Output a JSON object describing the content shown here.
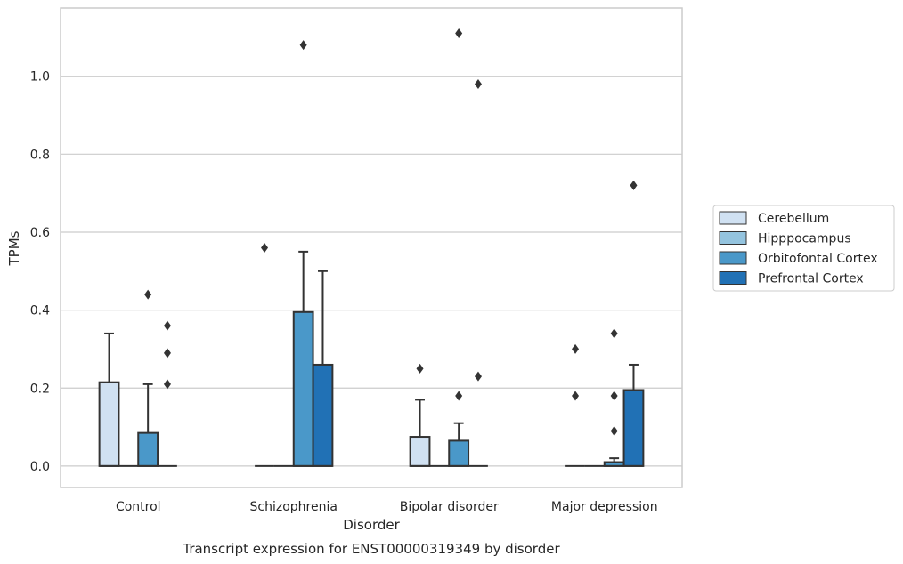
{
  "chart_data": {
    "type": "box",
    "caption": "Transcript expression for ENST00000319349 by disorder",
    "xlabel": "Disorder",
    "ylabel": "TPMs",
    "ylim": [
      -0.055,
      1.175
    ],
    "yticks": [
      0.0,
      0.2,
      0.4,
      0.6,
      0.8,
      1.0
    ],
    "ytick_labels": [
      "0.0",
      "0.2",
      "0.4",
      "0.6",
      "0.8",
      "1.0"
    ],
    "grid": "horizontal",
    "legend_position": "right",
    "categories": [
      "Control",
      "Schizophrenia",
      "Bipolar disorder",
      "Major depression"
    ],
    "series": [
      {
        "name": "Cerebellum",
        "color": "#d0e1f2",
        "boxes": [
          {
            "q1": 0,
            "median": 0,
            "q3": 0.215,
            "whisker_low": 0,
            "whisker_high": 0.34,
            "outliers": []
          },
          {
            "q1": 0,
            "median": 0,
            "q3": 0,
            "whisker_low": 0,
            "whisker_high": 0,
            "outliers": [
              0.56
            ]
          },
          {
            "q1": 0,
            "median": 0,
            "q3": 0.075,
            "whisker_low": 0,
            "whisker_high": 0.17,
            "outliers": [
              0.25
            ]
          },
          {
            "q1": 0,
            "median": 0,
            "q3": 0,
            "whisker_low": 0,
            "whisker_high": 0,
            "outliers": [
              0.18,
              0.3
            ]
          }
        ]
      },
      {
        "name": "Hipppocampus",
        "color": "#94c4df",
        "boxes": [
          {
            "q1": 0,
            "median": 0,
            "q3": 0,
            "whisker_low": 0,
            "whisker_high": 0,
            "outliers": []
          },
          {
            "q1": 0,
            "median": 0,
            "q3": 0,
            "whisker_low": 0,
            "whisker_high": 0,
            "outliers": []
          },
          {
            "q1": 0,
            "median": 0,
            "q3": 0,
            "whisker_low": 0,
            "whisker_high": 0,
            "outliers": []
          },
          {
            "q1": 0,
            "median": 0,
            "q3": 0,
            "whisker_low": 0,
            "whisker_high": 0,
            "outliers": []
          }
        ]
      },
      {
        "name": "Orbitofontal Cortex",
        "color": "#4a98c9",
        "boxes": [
          {
            "q1": 0,
            "median": 0,
            "q3": 0.085,
            "whisker_low": 0,
            "whisker_high": 0.21,
            "outliers": [
              0.44
            ]
          },
          {
            "q1": 0,
            "median": 0,
            "q3": 0.395,
            "whisker_low": 0,
            "whisker_high": 0.55,
            "outliers": [
              1.08
            ]
          },
          {
            "q1": 0,
            "median": 0,
            "q3": 0.065,
            "whisker_low": 0,
            "whisker_high": 0.11,
            "outliers": [
              0.18,
              1.11
            ]
          },
          {
            "q1": 0,
            "median": 0,
            "q3": 0.01,
            "whisker_low": 0,
            "whisker_high": 0.02,
            "outliers": [
              0.09,
              0.18,
              0.34
            ]
          }
        ]
      },
      {
        "name": "Prefrontal Cortex",
        "color": "#2171b5",
        "boxes": [
          {
            "q1": 0,
            "median": 0,
            "q3": 0,
            "whisker_low": 0,
            "whisker_high": 0,
            "outliers": [
              0.21,
              0.29,
              0.36
            ]
          },
          {
            "q1": 0,
            "median": 0,
            "q3": 0.26,
            "whisker_low": 0,
            "whisker_high": 0.5,
            "outliers": []
          },
          {
            "q1": 0,
            "median": 0,
            "q3": 0,
            "whisker_low": 0,
            "whisker_high": 0,
            "outliers": [
              0.23,
              0.98
            ]
          },
          {
            "q1": 0,
            "median": 0,
            "q3": 0.195,
            "whisker_low": 0,
            "whisker_high": 0.26,
            "outliers": [
              0.72
            ]
          }
        ]
      }
    ]
  }
}
